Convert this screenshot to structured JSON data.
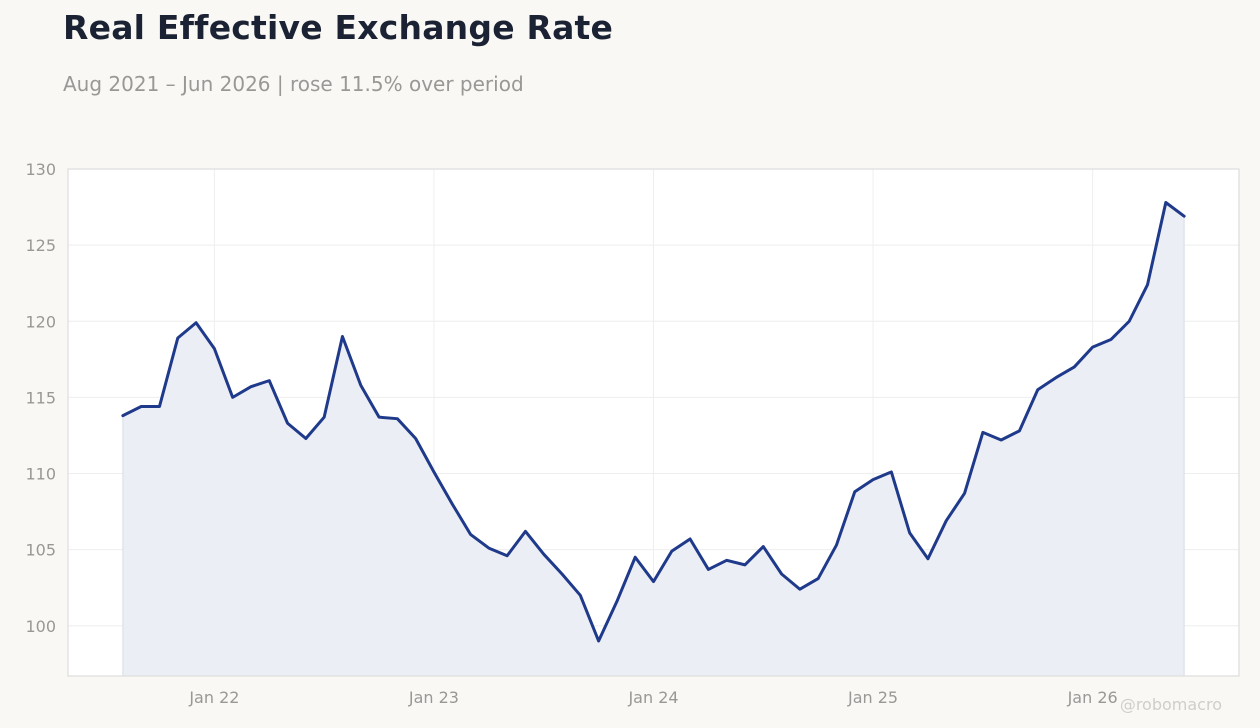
{
  "title": "Real Effective Exchange Rate",
  "subtitle": "Aug 2021 – Jun 2026 | rose 11.5% over period",
  "watermark": "@robomacro",
  "colors": {
    "line": "#1f3a8a",
    "fill": "#eceef6",
    "grid": "#eeeeee",
    "tick_text": "#999896",
    "plot_bg": "#ffffff",
    "plot_border": "#dddddd"
  },
  "chart_data": {
    "type": "area",
    "title": "Real Effective Exchange Rate",
    "subtitle": "Aug 2021 – Jun 2026 | rose 11.5% over period",
    "xlabel": "",
    "ylabel": "",
    "grid": true,
    "legend": "none",
    "x_ticks": [
      {
        "date": "2022-01",
        "label": "Jan 22"
      },
      {
        "date": "2023-01",
        "label": "Jan 23"
      },
      {
        "date": "2024-01",
        "label": "Jan 24"
      },
      {
        "date": "2025-01",
        "label": "Jan 25"
      },
      {
        "date": "2026-01",
        "label": "Jan 26"
      }
    ],
    "xlim": [
      "2021-05",
      "2026-09"
    ],
    "ylim": [
      96.7,
      130
    ],
    "y_ticks": [
      100,
      105,
      110,
      115,
      120,
      125,
      130
    ],
    "x": [
      "2021-08",
      "2021-09",
      "2021-10",
      "2021-11",
      "2021-12",
      "2022-01",
      "2022-02",
      "2022-03",
      "2022-04",
      "2022-05",
      "2022-06",
      "2022-07",
      "2022-08",
      "2022-09",
      "2022-10",
      "2022-11",
      "2022-12",
      "2023-01",
      "2023-02",
      "2023-03",
      "2023-04",
      "2023-05",
      "2023-06",
      "2023-07",
      "2023-08",
      "2023-09",
      "2023-10",
      "2023-11",
      "2023-12",
      "2024-01",
      "2024-02",
      "2024-03",
      "2024-04",
      "2024-05",
      "2024-06",
      "2024-07",
      "2024-08",
      "2024-09",
      "2024-10",
      "2024-11",
      "2024-12",
      "2025-01",
      "2025-02",
      "2025-03",
      "2025-04",
      "2025-05",
      "2025-06",
      "2025-07",
      "2025-08",
      "2025-09",
      "2025-10",
      "2025-11",
      "2025-12",
      "2026-01",
      "2026-02",
      "2026-03",
      "2026-04",
      "2026-05",
      "2026-06"
    ],
    "values": [
      113.8,
      114.4,
      114.4,
      118.9,
      119.9,
      118.2,
      115.0,
      115.7,
      116.1,
      113.3,
      112.3,
      113.7,
      119.0,
      115.8,
      113.7,
      113.6,
      112.3,
      110.1,
      108.0,
      106.0,
      105.1,
      104.6,
      106.2,
      104.7,
      103.4,
      102.0,
      99.0,
      101.6,
      104.5,
      102.9,
      104.9,
      105.7,
      103.7,
      104.3,
      104.0,
      105.2,
      103.4,
      102.4,
      103.1,
      105.3,
      108.8,
      109.6,
      110.1,
      106.1,
      104.4,
      106.9,
      108.7,
      112.7,
      112.2,
      112.8,
      115.5,
      116.3,
      117.0,
      118.3,
      118.8,
      120.0,
      122.4,
      127.8,
      126.9
    ]
  }
}
